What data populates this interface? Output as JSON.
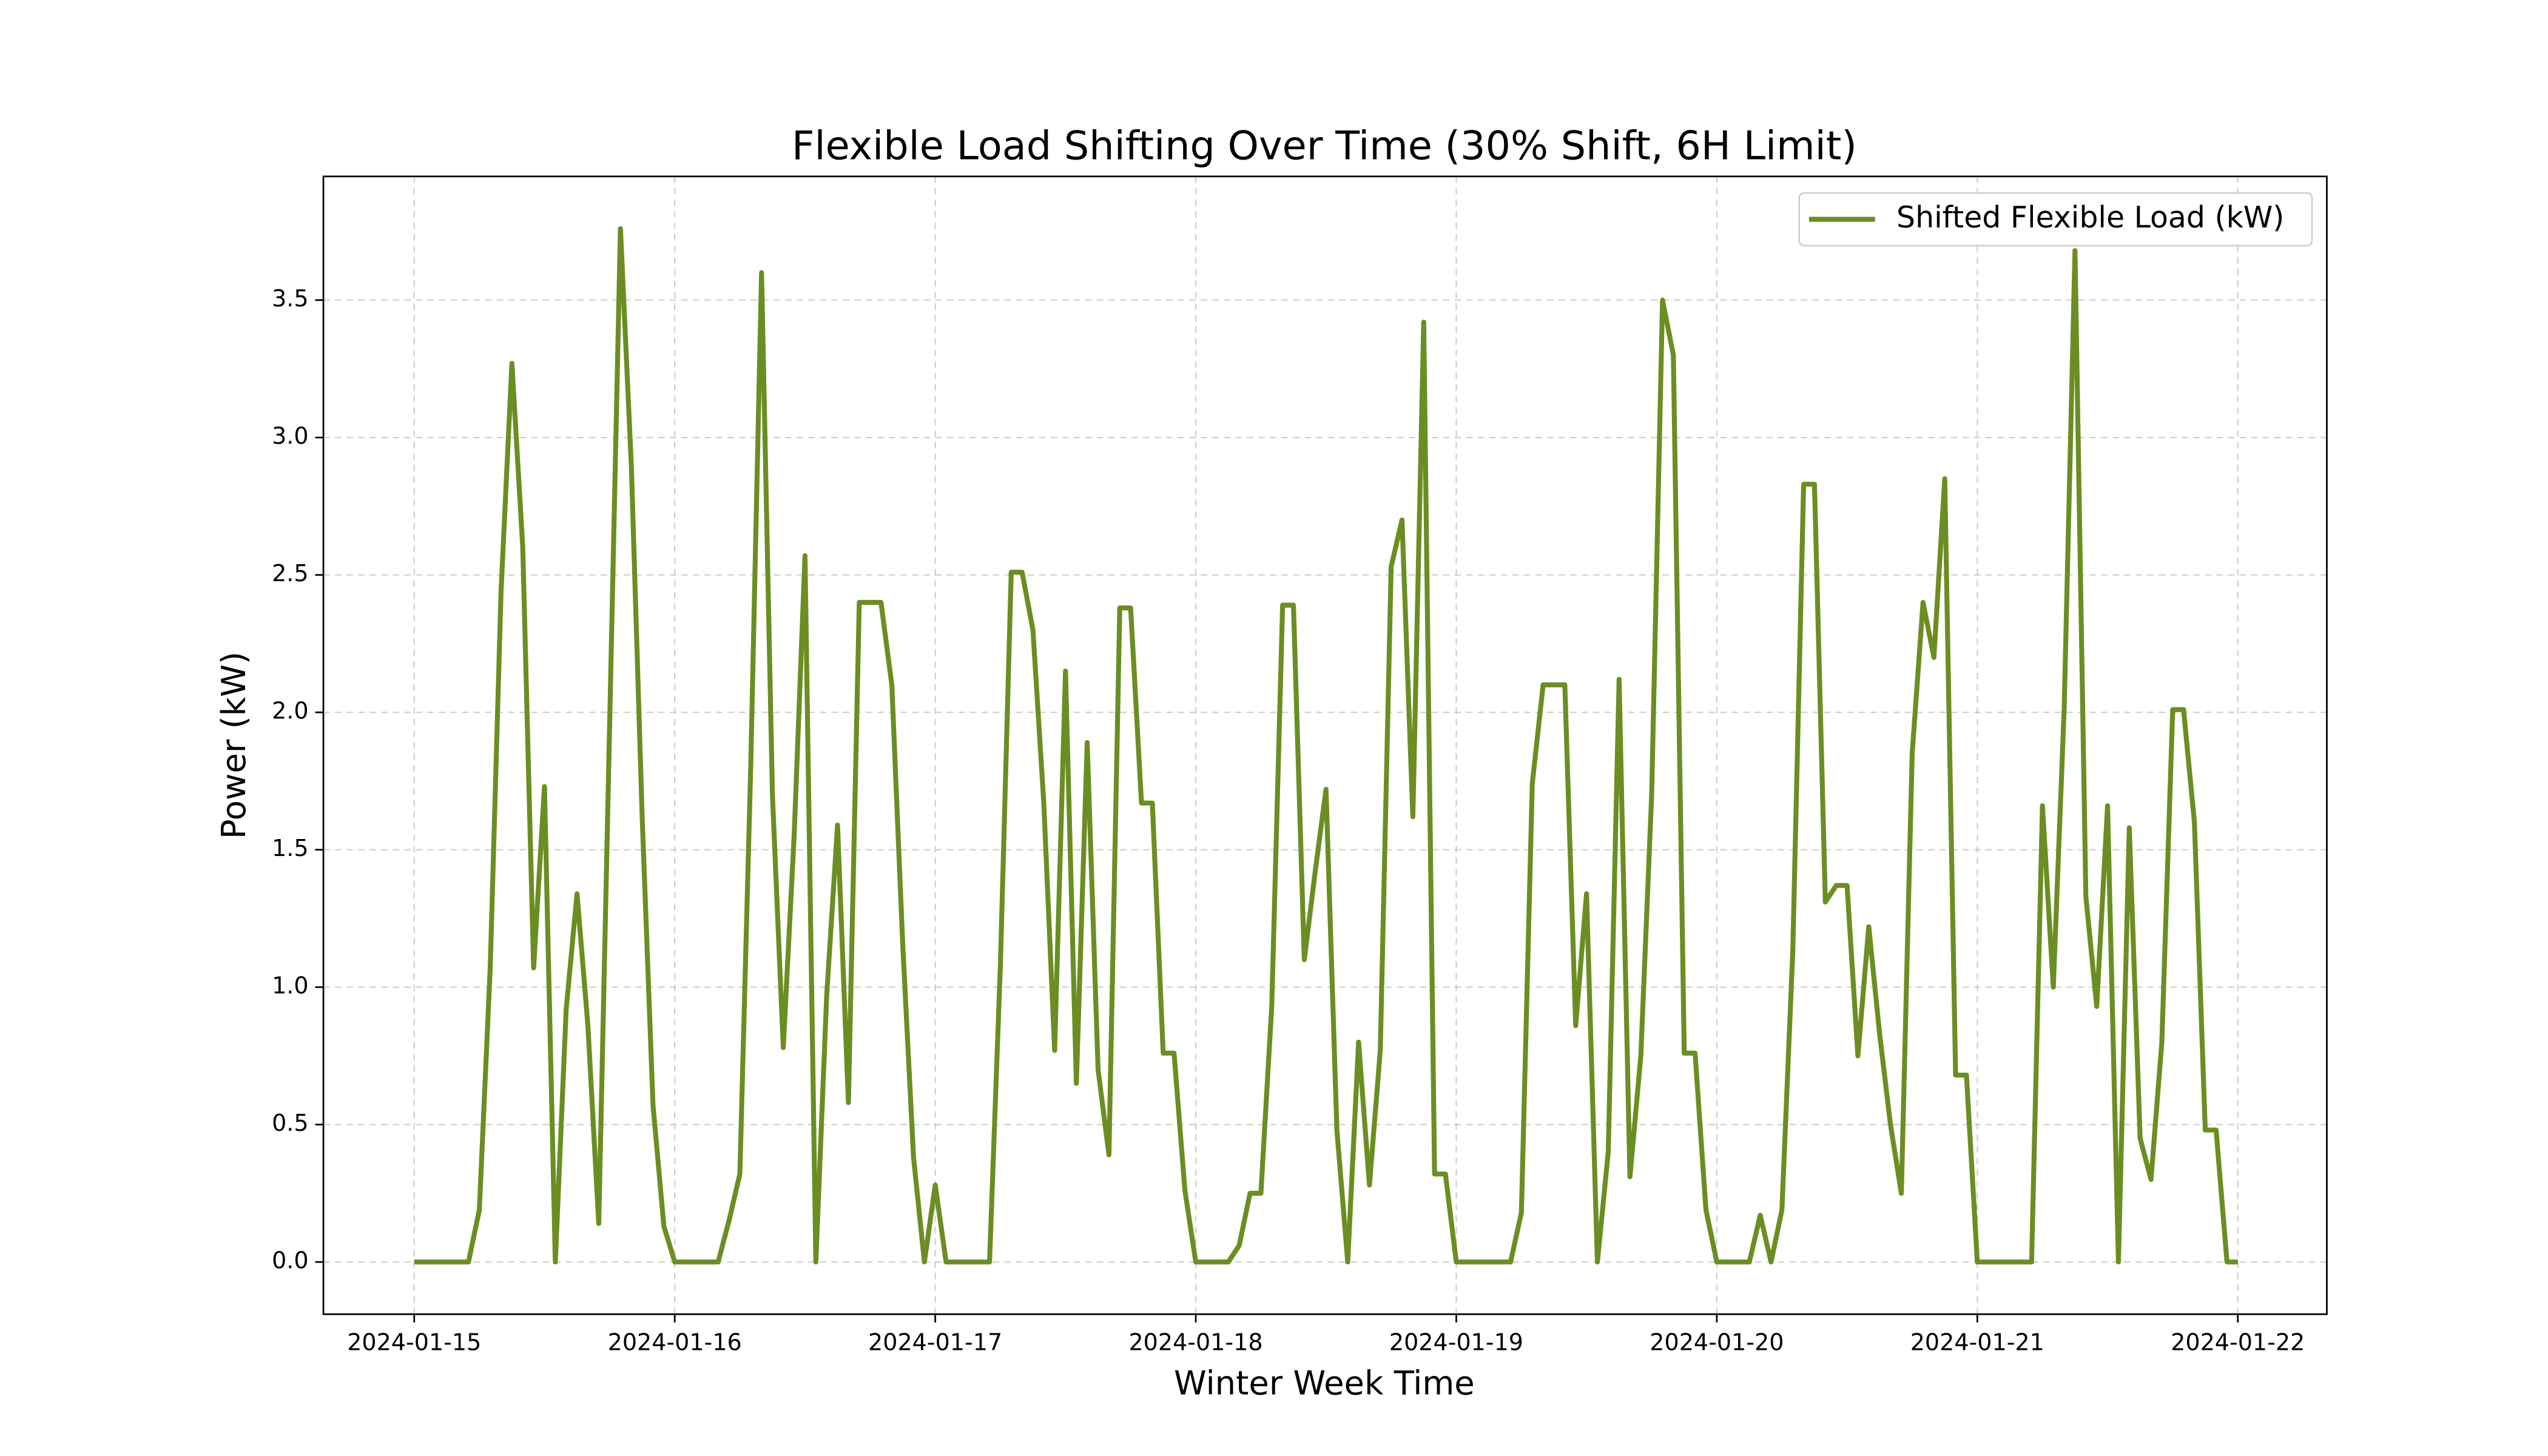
{
  "chart_data": {
    "type": "line",
    "title": "Flexible Load Shifting Over Time (30% Shift, 6H Limit)",
    "x_label": "Winter Week Time",
    "y_label": "Power (kW)",
    "grid": true,
    "legend": "upper right",
    "xlim": [
      "2024-01-14 15:38",
      "2024-01-22 08:12"
    ],
    "xticks": [
      "2024-01-15",
      "2024-01-16",
      "2024-01-17",
      "2024-01-18",
      "2024-01-19",
      "2024-01-20",
      "2024-01-21",
      "2024-01-22"
    ],
    "ylim": [
      -0.19,
      3.95
    ],
    "yticks": [
      {
        "value": 0,
        "label": "0.0"
      },
      0.5,
      {
        "value": 1,
        "label": "1.0"
      },
      1.5,
      {
        "value": 2,
        "label": "2.0"
      },
      2.5,
      {
        "value": 3,
        "label": "3.0"
      },
      3.5
    ],
    "x": [
      "2024-01-15 00:00",
      "2024-01-15 01:00",
      "2024-01-15 02:00",
      "2024-01-15 03:00",
      "2024-01-15 04:00",
      "2024-01-15 05:00",
      "2024-01-15 06:00",
      "2024-01-15 07:00",
      "2024-01-15 08:00",
      "2024-01-15 09:00",
      "2024-01-15 10:00",
      "2024-01-15 11:00",
      "2024-01-15 12:00",
      "2024-01-15 13:00",
      "2024-01-15 14:00",
      "2024-01-15 15:00",
      "2024-01-15 16:00",
      "2024-01-15 17:00",
      "2024-01-15 18:00",
      "2024-01-15 19:00",
      "2024-01-15 20:00",
      "2024-01-15 21:00",
      "2024-01-15 22:00",
      "2024-01-15 23:00",
      "2024-01-16 00:00",
      "2024-01-16 01:00",
      "2024-01-16 02:00",
      "2024-01-16 03:00",
      "2024-01-16 04:00",
      "2024-01-16 05:00",
      "2024-01-16 06:00",
      "2024-01-16 07:00",
      "2024-01-16 08:00",
      "2024-01-16 09:00",
      "2024-01-16 10:00",
      "2024-01-16 11:00",
      "2024-01-16 12:00",
      "2024-01-16 13:00",
      "2024-01-16 14:00",
      "2024-01-16 15:00",
      "2024-01-16 16:00",
      "2024-01-16 17:00",
      "2024-01-16 18:00",
      "2024-01-16 19:00",
      "2024-01-16 20:00",
      "2024-01-16 21:00",
      "2024-01-16 22:00",
      "2024-01-16 23:00",
      "2024-01-17 00:00",
      "2024-01-17 01:00",
      "2024-01-17 02:00",
      "2024-01-17 03:00",
      "2024-01-17 04:00",
      "2024-01-17 05:00",
      "2024-01-17 06:00",
      "2024-01-17 07:00",
      "2024-01-17 08:00",
      "2024-01-17 09:00",
      "2024-01-17 10:00",
      "2024-01-17 11:00",
      "2024-01-17 12:00",
      "2024-01-17 13:00",
      "2024-01-17 14:00",
      "2024-01-17 15:00",
      "2024-01-17 16:00",
      "2024-01-17 17:00",
      "2024-01-17 18:00",
      "2024-01-17 19:00",
      "2024-01-17 20:00",
      "2024-01-17 21:00",
      "2024-01-17 22:00",
      "2024-01-17 23:00",
      "2024-01-18 00:00",
      "2024-01-18 01:00",
      "2024-01-18 02:00",
      "2024-01-18 03:00",
      "2024-01-18 04:00",
      "2024-01-18 05:00",
      "2024-01-18 06:00",
      "2024-01-18 07:00",
      "2024-01-18 08:00",
      "2024-01-18 09:00",
      "2024-01-18 10:00",
      "2024-01-18 11:00",
      "2024-01-18 12:00",
      "2024-01-18 13:00",
      "2024-01-18 14:00",
      "2024-01-18 15:00",
      "2024-01-18 16:00",
      "2024-01-18 17:00",
      "2024-01-18 18:00",
      "2024-01-18 19:00",
      "2024-01-18 20:00",
      "2024-01-18 21:00",
      "2024-01-18 22:00",
      "2024-01-18 23:00",
      "2024-01-19 00:00",
      "2024-01-19 01:00",
      "2024-01-19 02:00",
      "2024-01-19 03:00",
      "2024-01-19 04:00",
      "2024-01-19 05:00",
      "2024-01-19 06:00",
      "2024-01-19 07:00",
      "2024-01-19 08:00",
      "2024-01-19 09:00",
      "2024-01-19 10:00",
      "2024-01-19 11:00",
      "2024-01-19 12:00",
      "2024-01-19 13:00",
      "2024-01-19 14:00",
      "2024-01-19 15:00",
      "2024-01-19 16:00",
      "2024-01-19 17:00",
      "2024-01-19 18:00",
      "2024-01-19 19:00",
      "2024-01-19 20:00",
      "2024-01-19 21:00",
      "2024-01-19 22:00",
      "2024-01-19 23:00",
      "2024-01-20 00:00",
      "2024-01-20 01:00",
      "2024-01-20 02:00",
      "2024-01-20 03:00",
      "2024-01-20 04:00",
      "2024-01-20 05:00",
      "2024-01-20 06:00",
      "2024-01-20 07:00",
      "2024-01-20 08:00",
      "2024-01-20 09:00",
      "2024-01-20 10:00",
      "2024-01-20 11:00",
      "2024-01-20 12:00",
      "2024-01-20 13:00",
      "2024-01-20 14:00",
      "2024-01-20 15:00",
      "2024-01-20 16:00",
      "2024-01-20 17:00",
      "2024-01-20 18:00",
      "2024-01-20 19:00",
      "2024-01-20 20:00",
      "2024-01-20 21:00",
      "2024-01-20 22:00",
      "2024-01-20 23:00",
      "2024-01-21 00:00",
      "2024-01-21 01:00",
      "2024-01-21 02:00",
      "2024-01-21 03:00",
      "2024-01-21 04:00",
      "2024-01-21 05:00",
      "2024-01-21 06:00",
      "2024-01-21 07:00",
      "2024-01-21 08:00",
      "2024-01-21 09:00",
      "2024-01-21 10:00",
      "2024-01-21 11:00",
      "2024-01-21 12:00",
      "2024-01-21 13:00",
      "2024-01-21 14:00",
      "2024-01-21 15:00",
      "2024-01-21 16:00",
      "2024-01-21 17:00",
      "2024-01-21 18:00",
      "2024-01-21 19:00",
      "2024-01-21 20:00",
      "2024-01-21 21:00",
      "2024-01-21 22:00",
      "2024-01-21 23:00",
      "2024-01-22 00:00"
    ],
    "series": [
      {
        "name": "Shifted Flexible Load (kW)",
        "color": "#6b8e23",
        "values": [
          0,
          0,
          0,
          0,
          0,
          0,
          0.19,
          1.07,
          2.44,
          3.27,
          2.6,
          1.07,
          1.73,
          0,
          0.92,
          1.34,
          0.86,
          0.14,
          1.95,
          3.76,
          2.9,
          1.62,
          0.57,
          0.13,
          0,
          0,
          0,
          0,
          0,
          0.15,
          0.32,
          1.8,
          3.6,
          1.7,
          0.78,
          1.55,
          2.57,
          0,
          0.97,
          1.59,
          0.58,
          2.4,
          2.4,
          2.4,
          2.1,
          1.16,
          0.38,
          0,
          0.28,
          0,
          0,
          0,
          0,
          0,
          1.08,
          2.51,
          2.51,
          2.3,
          1.67,
          0.77,
          2.15,
          0.65,
          1.89,
          0.7,
          0.39,
          2.38,
          2.38,
          1.67,
          1.67,
          0.76,
          0.76,
          0.26,
          0,
          0,
          0,
          0,
          0.06,
          0.25,
          0.25,
          0.93,
          2.39,
          2.39,
          1.1,
          1.42,
          1.72,
          0.48,
          0,
          0.8,
          0.28,
          0.77,
          2.53,
          2.7,
          1.62,
          3.42,
          0.32,
          0.32,
          0,
          0,
          0,
          0,
          0,
          0,
          0.18,
          1.74,
          2.1,
          2.1,
          2.1,
          0.86,
          1.34,
          0,
          0.4,
          2.12,
          0.31,
          0.75,
          1.7,
          3.5,
          3.3,
          0.76,
          0.76,
          0.19,
          0,
          0,
          0,
          0,
          0.17,
          0,
          0.19,
          1.13,
          2.83,
          2.83,
          1.31,
          1.37,
          1.37,
          0.75,
          1.22,
          0.83,
          0.5,
          0.25,
          1.85,
          2.4,
          2.2,
          2.85,
          0.68,
          0.68,
          0,
          0,
          0,
          0,
          0,
          0,
          1.66,
          1,
          2.01,
          3.68,
          1.33,
          0.93,
          1.66,
          0,
          1.58,
          0.45,
          0.3,
          0.8,
          2.01,
          2.01,
          1.6,
          0.48,
          0.48,
          0,
          0
        ]
      }
    ]
  }
}
